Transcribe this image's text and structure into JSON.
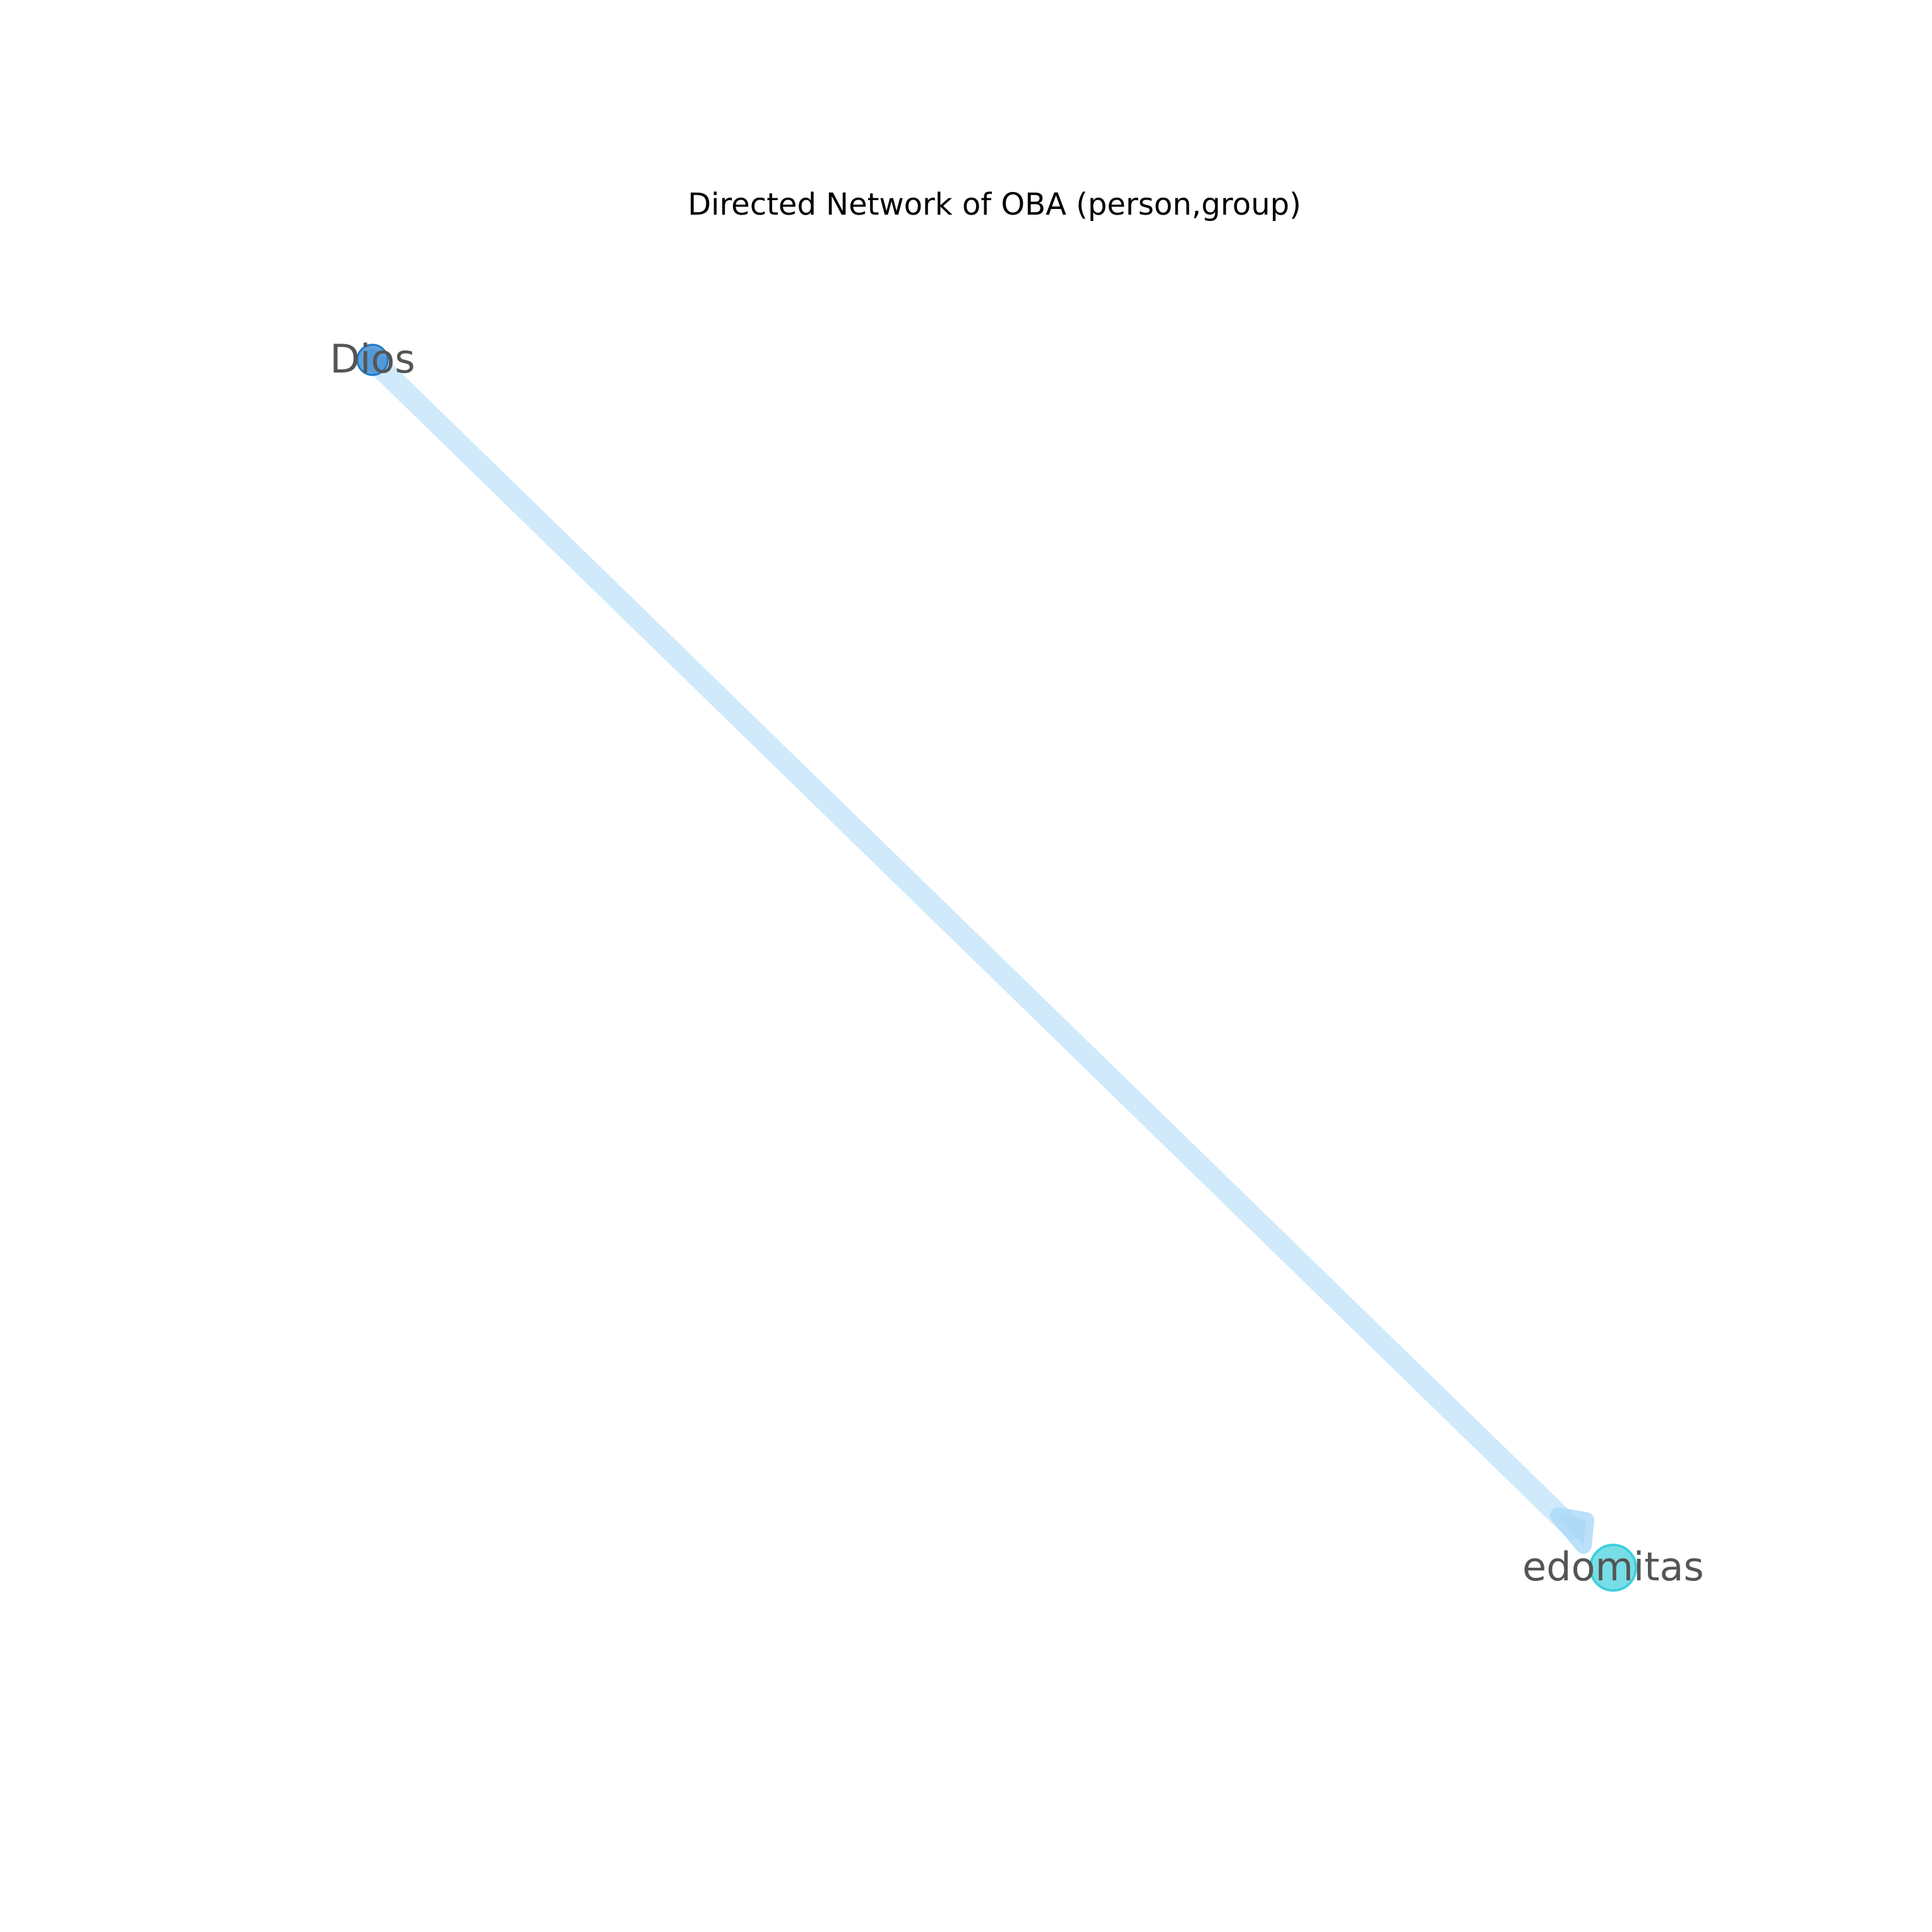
{
  "title": "Directed Network of OBA (person,group)",
  "graph": {
    "directed": true,
    "nodes": [
      {
        "id": "Dios",
        "label": "Dios",
        "color": "#1f78c8",
        "opacity": 0.7
      },
      {
        "id": "edomitas",
        "label": "edomitas",
        "color": "#3fcfdc",
        "opacity": 0.7
      }
    ],
    "edges": [
      {
        "source": "Dios",
        "target": "edomitas",
        "color": "#aad8f8",
        "opacity": 0.55
      }
    ]
  }
}
